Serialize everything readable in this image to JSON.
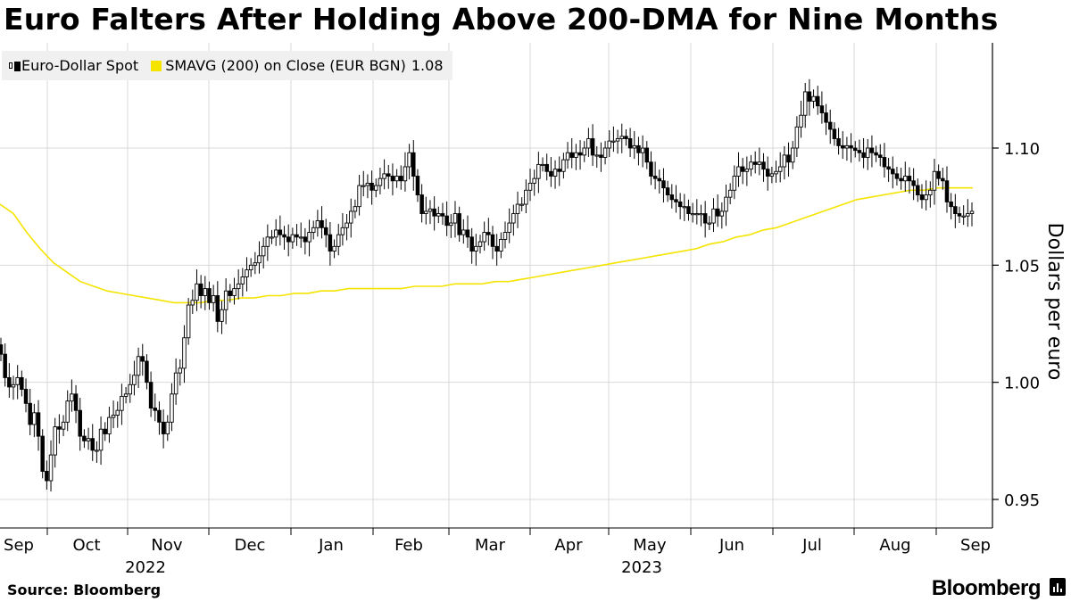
{
  "title": "Euro Falters After Holding Above 200-DMA for Nine Months",
  "legend": {
    "series1_label": "Euro-Dollar Spot",
    "series2_label": "SMAVG (200)  on Close (EUR BGN)",
    "series2_value": "1.08"
  },
  "footer": {
    "source": "Source: Bloomberg",
    "brand": "Bloomberg"
  },
  "colors": {
    "candle": "#000000",
    "sma": "#f5e400",
    "grid": "#d9d9d9",
    "background": "#ffffff"
  },
  "chart_data": {
    "type": "candlestick",
    "title": "Euro Falters After Holding Above 200-DMA for Nine Months",
    "ylabel": "Dollars per euro",
    "ylim": [
      0.94,
      1.14
    ],
    "y_ticks": [
      "0.95",
      "1.00",
      "1.05",
      "1.10"
    ],
    "x_month_labels": [
      "Sep",
      "Oct",
      "Nov",
      "Dec",
      "Jan",
      "Feb",
      "Mar",
      "Apr",
      "May",
      "Jun",
      "Jul",
      "Aug",
      "Sep"
    ],
    "x_year_labels": [
      {
        "label": "2022",
        "month_index": 1.5
      },
      {
        "label": "2023",
        "month_index": 7.8
      }
    ],
    "grid": true,
    "legend_position": "top-left",
    "series": [
      {
        "name": "Euro-Dollar Spot",
        "kind": "candlestick",
        "values": [
          1.012,
          1.002,
          0.998,
          0.999,
          1.002,
          0.997,
          0.991,
          0.982,
          0.987,
          0.977,
          0.962,
          0.958,
          0.969,
          0.981,
          0.98,
          0.983,
          0.992,
          0.995,
          0.988,
          0.977,
          0.975,
          0.976,
          0.971,
          0.971,
          0.98,
          0.978,
          0.985,
          0.986,
          0.988,
          0.994,
          0.995,
          0.999,
          1.003,
          1.011,
          1.009,
          1.0,
          0.989,
          0.988,
          0.983,
          0.978,
          0.983,
          0.995,
          1.004,
          1.006,
          1.019,
          1.033,
          1.035,
          1.042,
          1.037,
          1.04,
          1.034,
          1.037,
          1.026,
          1.031,
          1.039,
          1.037,
          1.04,
          1.042,
          1.045,
          1.048,
          1.05,
          1.051,
          1.054,
          1.058,
          1.062,
          1.062,
          1.065,
          1.063,
          1.062,
          1.06,
          1.063,
          1.062,
          1.062,
          1.06,
          1.064,
          1.066,
          1.069,
          1.066,
          1.063,
          1.056,
          1.058,
          1.063,
          1.066,
          1.068,
          1.073,
          1.075,
          1.084,
          1.084,
          1.085,
          1.082,
          1.084,
          1.087,
          1.089,
          1.088,
          1.086,
          1.088,
          1.086,
          1.092,
          1.098,
          1.088,
          1.08,
          1.072,
          1.073,
          1.074,
          1.071,
          1.072,
          1.071,
          1.067,
          1.068,
          1.072,
          1.063,
          1.065,
          1.062,
          1.056,
          1.058,
          1.06,
          1.064,
          1.063,
          1.058,
          1.056,
          1.061,
          1.064,
          1.068,
          1.072,
          1.076,
          1.076,
          1.082,
          1.085,
          1.087,
          1.093,
          1.093,
          1.09,
          1.088,
          1.091,
          1.09,
          1.095,
          1.098,
          1.096,
          1.098,
          1.097,
          1.1,
          1.104,
          1.097,
          1.097,
          1.096,
          1.1,
          1.103,
          1.103,
          1.104,
          1.105,
          1.104,
          1.1,
          1.101,
          1.098,
          1.1,
          1.094,
          1.088,
          1.087,
          1.086,
          1.083,
          1.08,
          1.078,
          1.077,
          1.075,
          1.075,
          1.072,
          1.072,
          1.072,
          1.072,
          1.068,
          1.068,
          1.074,
          1.071,
          1.073,
          1.079,
          1.082,
          1.088,
          1.092,
          1.09,
          1.091,
          1.094,
          1.093,
          1.094,
          1.091,
          1.088,
          1.089,
          1.09,
          1.092,
          1.097,
          1.094,
          1.1,
          1.109,
          1.114,
          1.124,
          1.12,
          1.122,
          1.118,
          1.115,
          1.111,
          1.108,
          1.104,
          1.101,
          1.1,
          1.101,
          1.1,
          1.099,
          1.098,
          1.096,
          1.1,
          1.098,
          1.097,
          1.096,
          1.092,
          1.091,
          1.089,
          1.087,
          1.086,
          1.088,
          1.086,
          1.084,
          1.08,
          1.078,
          1.08,
          1.082,
          1.09,
          1.087,
          1.086,
          1.077,
          1.075,
          1.072,
          1.071,
          1.071,
          1.072,
          1.073
        ]
      },
      {
        "name": "SMAVG (200)  on Close (EUR BGN)",
        "kind": "line",
        "points": [
          [
            0,
            1.076
          ],
          [
            15,
            1.072
          ],
          [
            30,
            1.064
          ],
          [
            45,
            1.057
          ],
          [
            60,
            1.051
          ],
          [
            75,
            1.047
          ],
          [
            90,
            1.043
          ],
          [
            105,
            1.041
          ],
          [
            120,
            1.039
          ],
          [
            135,
            1.038
          ],
          [
            150,
            1.037
          ],
          [
            165,
            1.036
          ],
          [
            180,
            1.035
          ],
          [
            195,
            1.034
          ],
          [
            210,
            1.034
          ],
          [
            225,
            1.034
          ],
          [
            240,
            1.035
          ],
          [
            255,
            1.035
          ],
          [
            270,
            1.036
          ],
          [
            285,
            1.036
          ],
          [
            300,
            1.037
          ],
          [
            315,
            1.037
          ],
          [
            330,
            1.038
          ],
          [
            345,
            1.038
          ],
          [
            360,
            1.039
          ],
          [
            375,
            1.039
          ],
          [
            390,
            1.04
          ],
          [
            405,
            1.04
          ],
          [
            420,
            1.04
          ],
          [
            435,
            1.04
          ],
          [
            450,
            1.04
          ],
          [
            465,
            1.041
          ],
          [
            480,
            1.041
          ],
          [
            495,
            1.041
          ],
          [
            510,
            1.042
          ],
          [
            525,
            1.042
          ],
          [
            540,
            1.042
          ],
          [
            555,
            1.043
          ],
          [
            570,
            1.043
          ],
          [
            585,
            1.044
          ],
          [
            600,
            1.045
          ],
          [
            615,
            1.046
          ],
          [
            630,
            1.047
          ],
          [
            645,
            1.048
          ],
          [
            660,
            1.049
          ],
          [
            675,
            1.05
          ],
          [
            690,
            1.051
          ],
          [
            705,
            1.052
          ],
          [
            720,
            1.053
          ],
          [
            735,
            1.054
          ],
          [
            750,
            1.055
          ],
          [
            765,
            1.056
          ],
          [
            780,
            1.057
          ],
          [
            795,
            1.059
          ],
          [
            810,
            1.06
          ],
          [
            825,
            1.062
          ],
          [
            840,
            1.063
          ],
          [
            855,
            1.065
          ],
          [
            870,
            1.066
          ],
          [
            885,
            1.068
          ],
          [
            900,
            1.07
          ],
          [
            915,
            1.072
          ],
          [
            930,
            1.074
          ],
          [
            945,
            1.076
          ],
          [
            960,
            1.078
          ],
          [
            975,
            1.079
          ],
          [
            990,
            1.08
          ],
          [
            1005,
            1.081
          ],
          [
            1020,
            1.082
          ],
          [
            1035,
            1.082
          ],
          [
            1050,
            1.083
          ],
          [
            1065,
            1.083
          ],
          [
            1090,
            1.083
          ]
        ]
      }
    ]
  }
}
